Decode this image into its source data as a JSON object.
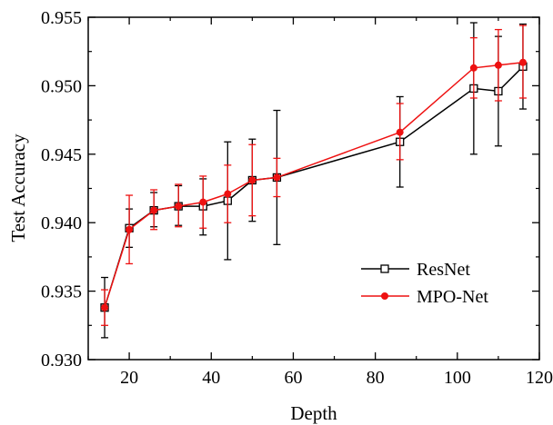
{
  "chart_data": {
    "type": "line",
    "xlabel": "Depth",
    "ylabel": "Test Accuracy",
    "xlim": [
      10,
      120
    ],
    "ylim": [
      0.93,
      0.955
    ],
    "x_ticks": [
      20,
      40,
      60,
      80,
      100,
      120
    ],
    "x_tick_labels": [
      "20",
      "40",
      "60",
      "80",
      "100",
      "120"
    ],
    "y_ticks": [
      0.93,
      0.935,
      0.94,
      0.945,
      0.95,
      0.955
    ],
    "y_tick_labels": [
      "0.930",
      "0.935",
      "0.940",
      "0.945",
      "0.950",
      "0.955"
    ],
    "legend_position": "lower-right",
    "series": [
      {
        "name": "ResNet",
        "color": "#000000",
        "marker": "open-square",
        "x": [
          14,
          20,
          26,
          32,
          38,
          44,
          50,
          56,
          86,
          104,
          110,
          116
        ],
        "y": [
          0.9338,
          0.9396,
          0.9409,
          0.9412,
          0.9412,
          0.9416,
          0.9431,
          0.9433,
          0.9459,
          0.9498,
          0.9496,
          0.9514
        ],
        "err_low": [
          0.9316,
          0.9382,
          0.9397,
          0.9398,
          0.9391,
          0.9373,
          0.9401,
          0.9384,
          0.9426,
          0.945,
          0.9456,
          0.9483
        ],
        "err_high": [
          0.936,
          0.941,
          0.9422,
          0.9427,
          0.9432,
          0.9459,
          0.9461,
          0.9482,
          0.9492,
          0.9546,
          0.9536,
          0.9545
        ]
      },
      {
        "name": "MPO-Net",
        "color": "#ee1111",
        "marker": "filled-circle",
        "x": [
          14,
          20,
          26,
          32,
          38,
          44,
          50,
          56,
          86,
          104,
          110,
          116
        ],
        "y": [
          0.9338,
          0.9395,
          0.9409,
          0.9412,
          0.9415,
          0.9421,
          0.9431,
          0.9433,
          0.9466,
          0.9513,
          0.9515,
          0.9517
        ],
        "err_low": [
          0.9325,
          0.937,
          0.9395,
          0.9397,
          0.9396,
          0.94,
          0.9405,
          0.9419,
          0.9446,
          0.9491,
          0.9489,
          0.9491
        ],
        "err_high": [
          0.9351,
          0.942,
          0.9424,
          0.9428,
          0.9434,
          0.9442,
          0.9457,
          0.9447,
          0.9487,
          0.9535,
          0.9541,
          0.9544
        ]
      }
    ]
  }
}
